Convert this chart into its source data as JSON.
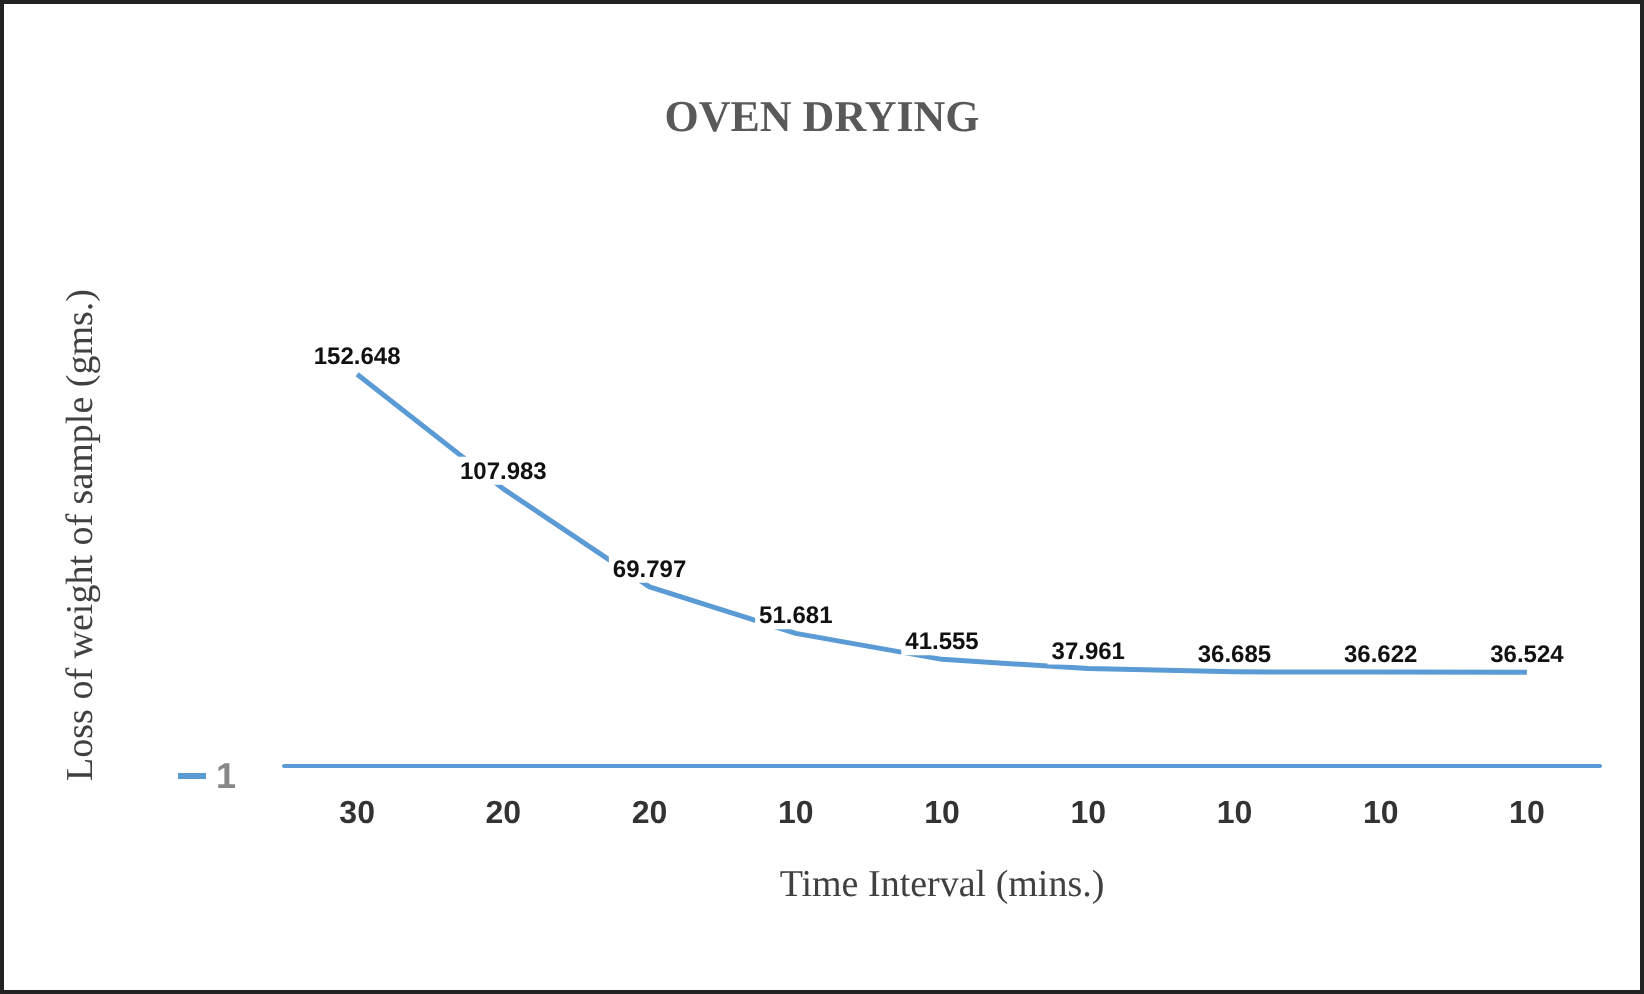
{
  "chart_data": {
    "type": "line",
    "title": "OVEN DRYING",
    "xlabel": "Time Interval (mins.)",
    "ylabel": "Loss of weight of sample (gms.)",
    "categories": [
      "30",
      "20",
      "20",
      "10",
      "10",
      "10",
      "10",
      "10",
      "10"
    ],
    "series": [
      {
        "name": "1",
        "color": "#5b9bd5",
        "values": [
          152.648,
          107.983,
          69.797,
          51.681,
          41.555,
          37.961,
          36.685,
          36.622,
          36.524
        ]
      }
    ],
    "data_labels": true,
    "legend": "left",
    "marker": "none",
    "grid": false
  }
}
